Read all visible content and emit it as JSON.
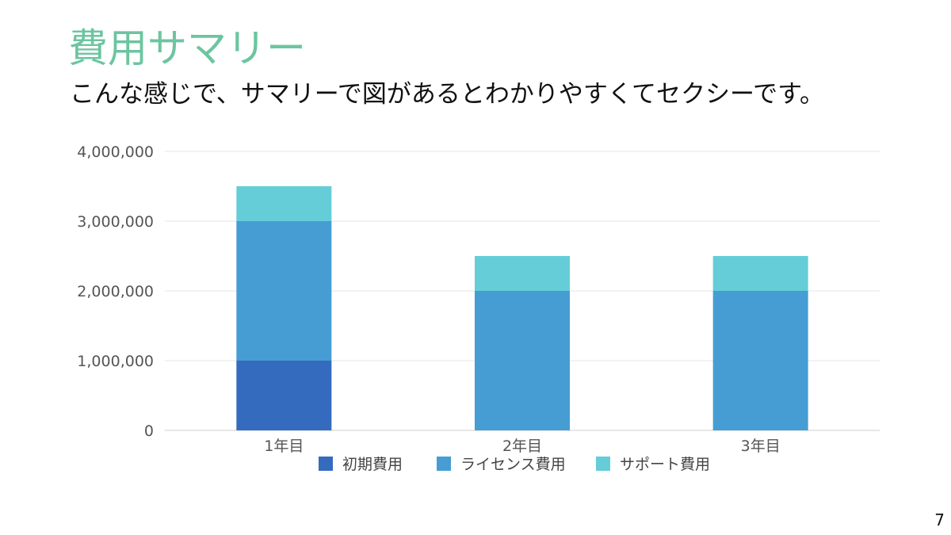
{
  "slide": {
    "title": "費用サマリー",
    "subtitle": "こんな感じで、サマリーで図があるとわかりやすくてセクシーです。",
    "page_number": "7"
  },
  "chart_data": {
    "type": "bar",
    "stacked": true,
    "categories": [
      "1年目",
      "2年目",
      "3年目"
    ],
    "series": [
      {
        "name": "初期費用",
        "values": [
          1000000,
          0,
          0
        ],
        "color": "#356bbf"
      },
      {
        "name": "ライセンス費用",
        "values": [
          2000000,
          2000000,
          2000000
        ],
        "color": "#469dd4"
      },
      {
        "name": "サポート費用",
        "values": [
          500000,
          500000,
          500000
        ],
        "color": "#64cdd8"
      }
    ],
    "ylim": [
      0,
      4000000
    ],
    "yticks": [
      "0",
      "1,000,000",
      "2,000,000",
      "3,000,000",
      "4,000,000"
    ],
    "grid": true,
    "legend_position": "bottom"
  }
}
